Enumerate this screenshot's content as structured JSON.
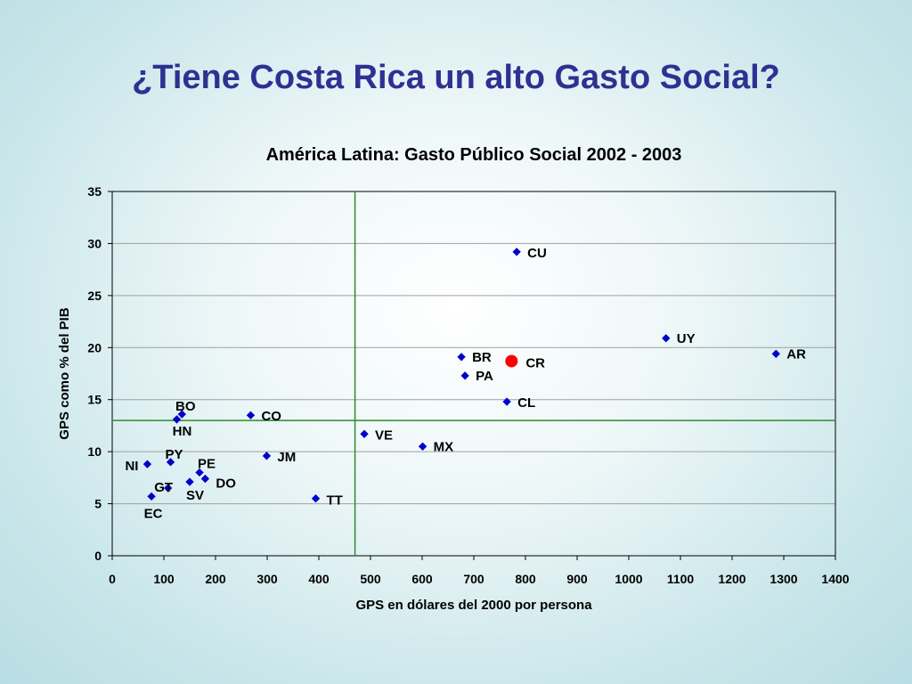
{
  "slide": {
    "title": "¿Tiene Costa Rica un alto Gasto Social?"
  },
  "chart_data": {
    "type": "scatter",
    "title": "América Latina: Gasto Público Social 2002 - 2003",
    "xlabel": "GPS en dólares del 2000 por persona",
    "ylabel": "GPS como % del PIB",
    "xlim": [
      0,
      1400
    ],
    "ylim": [
      0,
      35
    ],
    "xticks": [
      "0",
      "100",
      "200",
      "300",
      "400",
      "500",
      "600",
      "700",
      "800",
      "900",
      "1000",
      "1100",
      "1200",
      "1300",
      "1400"
    ],
    "yticks": [
      "0",
      "5",
      "10",
      "15",
      "20",
      "25",
      "30",
      "35"
    ],
    "grid": "horizontal",
    "reference_lines": {
      "x": 470,
      "y": 13
    },
    "colors": {
      "points": "#0000cc",
      "highlight": "#ff0000",
      "reference": "#2e8b2e",
      "grid": "#a0a0a0"
    },
    "points": [
      {
        "label": "CU",
        "x": 783,
        "y": 29.2
      },
      {
        "label": "UY",
        "x": 1072,
        "y": 20.9
      },
      {
        "label": "AR",
        "x": 1285,
        "y": 19.4
      },
      {
        "label": "BR",
        "x": 676,
        "y": 19.1
      },
      {
        "label": "CR",
        "x": 773,
        "y": 18.7,
        "highlight": true
      },
      {
        "label": "PA",
        "x": 683,
        "y": 17.3
      },
      {
        "label": "CL",
        "x": 764,
        "y": 14.8
      },
      {
        "label": "BO",
        "x": 135,
        "y": 13.6
      },
      {
        "label": "HN",
        "x": 125,
        "y": 13.1
      },
      {
        "label": "CO",
        "x": 268,
        "y": 13.5
      },
      {
        "label": "VE",
        "x": 488,
        "y": 11.7
      },
      {
        "label": "MX",
        "x": 601,
        "y": 10.5
      },
      {
        "label": "JM",
        "x": 299,
        "y": 9.6
      },
      {
        "label": "PY",
        "x": 113,
        "y": 9.0
      },
      {
        "label": "NI",
        "x": 68,
        "y": 8.8
      },
      {
        "label": "PE",
        "x": 169,
        "y": 8.0
      },
      {
        "label": "DO",
        "x": 180,
        "y": 7.4
      },
      {
        "label": "SV",
        "x": 150,
        "y": 7.1
      },
      {
        "label": "GT",
        "x": 108,
        "y": 6.5
      },
      {
        "label": "EC",
        "x": 76,
        "y": 5.7
      },
      {
        "label": "TT",
        "x": 394,
        "y": 5.5
      }
    ]
  }
}
